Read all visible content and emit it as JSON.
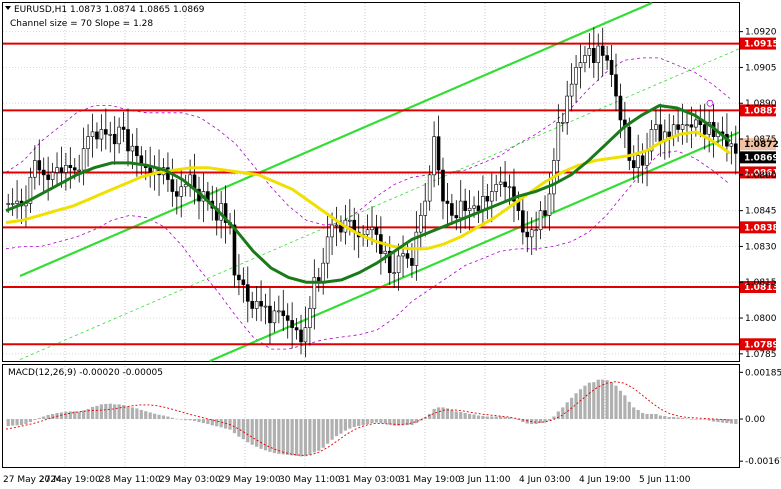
{
  "header": {
    "symbol_line": "EURUSD,H1  1.0873 1.0874 1.0865 1.0869",
    "channel_line": "Channel size = 70 Slope = 1.28"
  },
  "colors": {
    "candle": "#000000",
    "level_line": "#e00000",
    "level_label_bg": "#e00000",
    "channel": "#33dd33",
    "ma_fast": "#f0e000",
    "ma_slow": "#1a7a1a",
    "envelope": "#b000d0",
    "macd_hist": "#b0b0b0",
    "macd_signal": "#e00000",
    "current_label_bg": "#000000"
  },
  "chart_data": [
    {
      "type": "candlestick",
      "title": "EURUSD,H1",
      "ohlc_header": {
        "open": 1.0873,
        "high": 1.0874,
        "low": 1.0865,
        "close": 1.0869
      },
      "x_tick_labels": [
        "27 May 2024",
        "27 May 19:00",
        "28 May 11:00",
        "29 May 03:00",
        "29 May 19:00",
        "30 May 11:00",
        "31 May 03:00",
        "31 May 19:00",
        "3 Jun 11:00",
        "4 Jun 03:00",
        "4 Jun 19:00",
        "5 Jun 11:00"
      ],
      "y_axis_labels": [
        "1.0920",
        "1.0905",
        "1.0890",
        "1.0875",
        "1.0860",
        "1.0845",
        "1.0830",
        "1.0815",
        "1.0800",
        "1.0785"
      ],
      "ylim": [
        1.0782,
        1.0932
      ],
      "levels": [
        {
          "label": "1.0915",
          "value": 1.0915
        },
        {
          "label": "1.0887",
          "value": 1.0887
        },
        {
          "label": "1.0861",
          "value": 1.0861
        },
        {
          "label": "1.0838",
          "value": 1.0838
        },
        {
          "label": "1.0813",
          "value": 1.0813
        },
        {
          "label": "1.0789",
          "value": 1.0789
        }
      ],
      "current_price_labels": [
        {
          "label": "1.0872",
          "value": 1.0872
        },
        {
          "label": "1.0869",
          "value": 1.0869
        }
      ],
      "close_series": [
        1.0848,
        1.0848,
        1.0849,
        1.0847,
        1.0848,
        1.0859,
        1.0866,
        1.0862,
        1.086,
        1.0858,
        1.0861,
        1.0863,
        1.0861,
        1.0864,
        1.0863,
        1.0862,
        1.0862,
        1.0871,
        1.0876,
        1.0878,
        1.0875,
        1.0879,
        1.0877,
        1.0877,
        1.0873,
        1.088,
        1.0879,
        1.087,
        1.0872,
        1.0868,
        1.0864,
        1.0863,
        1.0861,
        1.0863,
        1.086,
        1.0863,
        1.0858,
        1.0853,
        1.0851,
        1.0855,
        1.0856,
        1.086,
        1.0854,
        1.0849,
        1.0853,
        1.0849,
        1.0846,
        1.0841,
        1.0848,
        1.084,
        1.0839,
        1.0818,
        1.0816,
        1.0814,
        1.0807,
        1.0804,
        1.0807,
        1.0805,
        1.0805,
        1.0798,
        1.0803,
        1.0803,
        1.0801,
        1.0799,
        1.0796,
        1.0795,
        1.079,
        1.0796,
        1.0804,
        1.0817,
        1.0815,
        1.0823,
        1.0834,
        1.0839,
        1.0839,
        1.0836,
        1.0841,
        1.0841,
        1.0836,
        1.0834,
        1.0835,
        1.0837,
        1.0838,
        1.0835,
        1.0827,
        1.0828,
        1.0819,
        1.0819,
        1.0826,
        1.0827,
        1.0825,
        1.0822,
        1.0836,
        1.0843,
        1.0849,
        1.086,
        1.0876,
        1.0862,
        1.0849,
        1.0848,
        1.0843,
        1.0842,
        1.0849,
        1.0845,
        1.0846,
        1.0847,
        1.0845,
        1.0851,
        1.0849,
        1.0853,
        1.0856,
        1.0857,
        1.0855,
        1.0855,
        1.0849,
        1.0845,
        1.0836,
        1.0834,
        1.0837,
        1.0837,
        1.0845,
        1.0843,
        1.0852,
        1.0866,
        1.0882,
        1.0882,
        1.0893,
        1.0898,
        1.0905,
        1.0907,
        1.091,
        1.0913,
        1.0907,
        1.0914,
        1.091,
        1.0908,
        1.0902,
        1.0893,
        1.0883,
        1.088,
        1.0866,
        1.0863,
        1.0868,
        1.0864,
        1.087,
        1.0879,
        1.0881,
        1.0874,
        1.0878,
        1.0876,
        1.0881,
        1.0879,
        1.0881,
        1.0881,
        1.088,
        1.0883,
        1.0881,
        1.0877,
        1.0882,
        1.0876,
        1.0878,
        1.0877,
        1.0872,
        1.0873,
        1.0869
      ],
      "ma_fast_series": [
        1.084,
        1.0841,
        1.0843,
        1.0845,
        1.0847,
        1.085,
        1.0853,
        1.0856,
        1.0859,
        1.0861,
        1.0862,
        1.0863,
        1.0863,
        1.0862,
        1.0861,
        1.086,
        1.0857,
        1.0854,
        1.0849,
        1.0844,
        1.0839,
        1.0835,
        1.0832,
        1.083,
        1.0829,
        1.0829,
        1.0831,
        1.0834,
        1.0838,
        1.0842,
        1.0847,
        1.0852,
        1.0857,
        1.0861,
        1.0864,
        1.0866,
        1.0867,
        1.0868,
        1.087,
        1.0874,
        1.0877,
        1.0878,
        1.0874,
        1.0869
      ],
      "ma_slow_series": [
        1.0845,
        1.0848,
        1.0852,
        1.0856,
        1.086,
        1.0863,
        1.0865,
        1.0865,
        1.0864,
        1.0862,
        1.0858,
        1.0852,
        1.0845,
        1.0837,
        1.0828,
        1.0821,
        1.0817,
        1.0815,
        1.0815,
        1.0816,
        1.0819,
        1.0823,
        1.0828,
        1.0833,
        1.0836,
        1.0839,
        1.0842,
        1.0845,
        1.0848,
        1.0851,
        1.0853,
        1.0856,
        1.086,
        1.0866,
        1.0873,
        1.088,
        1.0885,
        1.0889,
        1.0888,
        1.0885,
        1.088,
        1.0874
      ],
      "channel": {
        "lower_start": {
          "x_index": 38,
          "y": 1.0776
        },
        "lower_end": {
          "x_index": 165,
          "y": 1.0878
        },
        "width": 0.007
      }
    },
    {
      "type": "bar",
      "title": "MACD(12,26,9) -0.00020 -0.00005",
      "y_axis_labels": [
        "0.00185",
        "0.00",
        "-0.00167"
      ],
      "ylim": [
        -0.0019,
        0.0021
      ],
      "histogram_series": [
        -0.00028,
        -0.00026,
        -0.00025,
        -0.00024,
        -0.0002,
        -0.00012,
        -4e-05,
        4e-05,
        0.0001,
        0.00016,
        0.0002,
        0.00024,
        0.00026,
        0.00029,
        0.0003,
        0.0003,
        0.00029,
        0.00034,
        0.0004,
        0.00048,
        0.00052,
        0.00058,
        0.0006,
        0.00061,
        0.00058,
        0.00058,
        0.00055,
        0.0005,
        0.00046,
        0.00042,
        0.00036,
        0.00031,
        0.00026,
        0.00021,
        0.00017,
        0.00014,
        0.0001,
        5e-05,
        1e-05,
        -2e-05,
        -4e-05,
        -5e-05,
        -8e-05,
        -0.00012,
        -0.00016,
        -0.0002,
        -0.00025,
        -0.00029,
        -0.00033,
        -0.00038,
        -0.00042,
        -0.00056,
        -0.0007,
        -0.0008,
        -0.00092,
        -0.00102,
        -0.0011,
        -0.00118,
        -0.00124,
        -0.0013,
        -0.00135,
        -0.00138,
        -0.0014,
        -0.00142,
        -0.00144,
        -0.00146,
        -0.00148,
        -0.00146,
        -0.00142,
        -0.00132,
        -0.00126,
        -0.00114,
        -0.00098,
        -0.00082,
        -0.00068,
        -0.00058,
        -0.00046,
        -0.00038,
        -0.00032,
        -0.00028,
        -0.00024,
        -0.0002,
        -0.00016,
        -0.00014,
        -0.00016,
        -0.00018,
        -0.00022,
        -0.00026,
        -0.00026,
        -0.00025,
        -0.00024,
        -0.00024,
        -0.00016,
        -6e-05,
        6e-05,
        0.0002,
        0.0004,
        0.00046,
        0.00046,
        0.00042,
        0.00036,
        0.0003,
        0.00028,
        0.00024,
        0.0002,
        0.00018,
        0.00014,
        0.00012,
        0.0001,
        0.0001,
        0.0001,
        0.0001,
        8e-05,
        6e-05,
        2e-05,
        -4e-05,
        -0.00012,
        -0.00018,
        -0.0002,
        -0.0002,
        -0.00016,
        -0.00014,
        -6e-05,
        0.0001,
        0.0003,
        0.00046,
        0.00066,
        0.00084,
        0.00102,
        0.00118,
        0.00132,
        0.00144,
        0.00146,
        0.00156,
        0.00156,
        0.00154,
        0.00146,
        0.00132,
        0.00112,
        0.00094,
        0.00068,
        0.00046,
        0.00036,
        0.00024,
        0.0002,
        0.0002,
        0.0002,
        0.00014,
        0.00012,
        8e-05,
        8e-05,
        6e-05,
        4e-05,
        2e-05,
        0.0,
        0.0,
        -2e-05,
        -2e-05,
        -6e-05,
        -0.0001,
        -0.00012,
        -0.00014,
        -0.00016,
        -0.00018,
        -0.0002
      ],
      "signal_series": [
        -0.0004,
        -0.00034,
        -0.00026,
        -0.00018,
        -8e-05,
        4e-05,
        0.00014,
        0.00022,
        0.00028,
        0.00032,
        0.00034,
        0.00036,
        0.0004,
        0.00046,
        0.00052,
        0.00056,
        0.00056,
        0.00052,
        0.00044,
        0.00034,
        0.00024,
        0.00014,
        5e-05,
        -4e-05,
        -0.00012,
        -0.00022,
        -0.0004,
        -0.00062,
        -0.00084,
        -0.00104,
        -0.0012,
        -0.00132,
        -0.0014,
        -0.00144,
        -0.00142,
        -0.0013,
        -0.0011,
        -0.00086,
        -0.0006,
        -0.0004,
        -0.00026,
        -0.00018,
        -0.00018,
        -0.0002,
        -0.00022,
        -0.00018,
        -8e-05,
        0.0001,
        0.00026,
        0.00036,
        0.00036,
        0.00032,
        0.00026,
        0.0002,
        0.00016,
        0.00012,
        8e-05,
        2e-05,
        -6e-05,
        -0.00012,
        -0.00012,
        -4e-05,
        0.00014,
        0.0004,
        0.0007,
        0.001,
        0.00126,
        0.00142,
        0.00148,
        0.00142,
        0.00122,
        0.00094,
        0.00066,
        0.0004,
        0.00022,
        0.00012,
        6e-05,
        4e-05,
        2e-05,
        0.0,
        -2e-05,
        -5e-05
      ]
    }
  ]
}
